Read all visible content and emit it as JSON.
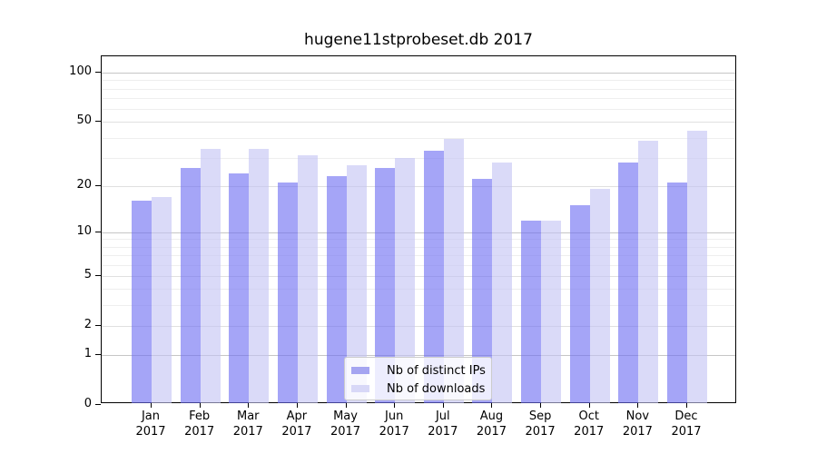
{
  "title": "hugene11stprobeset.db 2017",
  "chart_data": {
    "type": "bar",
    "title": "hugene11stprobeset.db 2017",
    "categories": [
      "Jan",
      "Feb",
      "Mar",
      "Apr",
      "May",
      "Jun",
      "Jul",
      "Aug",
      "Sep",
      "Oct",
      "Nov",
      "Dec"
    ],
    "year_label": "2017",
    "series": [
      {
        "name": "Nb of distinct IPs",
        "color": "rgba(110,110,242,0.62)",
        "swatch": "#a5a5f1",
        "values": [
          16,
          26,
          24,
          21,
          23,
          26,
          33,
          22,
          12,
          15,
          28,
          21
        ]
      },
      {
        "name": "Nb of downloads",
        "color": "rgba(196,196,244,0.62)",
        "swatch": "#d8d8f7",
        "values": [
          17,
          34,
          34,
          31,
          27,
          30,
          39,
          28,
          12,
          19,
          38,
          44
        ]
      }
    ],
    "y_scale": "log1p",
    "y_ticks": [
      0,
      1,
      2,
      5,
      10,
      20,
      50,
      100
    ],
    "ylim": [
      0,
      126
    ],
    "grid": true,
    "legend_position": "lower-center",
    "colors": {
      "grid_major": "#c6c6c6",
      "grid_mid": "#e0e0e0",
      "grid_minor": "#eeeeee",
      "spine": "#000000"
    },
    "grid_values_major": [
      1,
      10,
      100
    ],
    "grid_values_mid": [
      2,
      5,
      20,
      50
    ],
    "grid_values_minor": [
      3,
      4,
      6,
      7,
      8,
      9,
      30,
      40,
      60,
      70,
      80,
      90
    ]
  }
}
